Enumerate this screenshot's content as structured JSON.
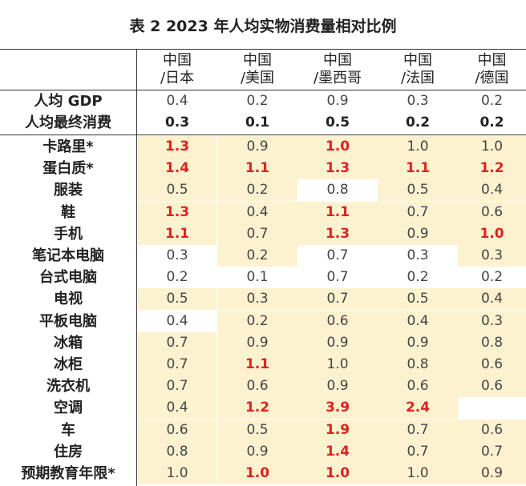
{
  "title": "表 2 2023 年人均实物消费量相对比例",
  "columns": [
    {
      "line1": "中国",
      "line2": "/日本"
    },
    {
      "line1": "中国",
      "line2": "/美国"
    },
    {
      "line1": "中国",
      "line2": "/墨西哥"
    },
    {
      "line1": "中国",
      "line2": "/法国"
    },
    {
      "line1": "中国",
      "line2": "/德国"
    }
  ],
  "summary_rows": [
    {
      "label": "人均 GDP",
      "values": [
        "0.4",
        "0.2",
        "0.9",
        "0.3",
        "0.2"
      ],
      "bold": false
    },
    {
      "label": "人均最终消费",
      "values": [
        "0.3",
        "0.1",
        "0.5",
        "0.2",
        "0.2"
      ],
      "bold": true
    }
  ],
  "rows": [
    {
      "label": "卡路里*",
      "values": [
        "1.3",
        "0.9",
        "1.0",
        "1.0",
        "1.0"
      ],
      "highlight": [
        true,
        true,
        true,
        true,
        true
      ],
      "red": [
        true,
        false,
        true,
        false,
        false
      ]
    },
    {
      "label": "蛋白质*",
      "values": [
        "1.4",
        "1.1",
        "1.3",
        "1.1",
        "1.2"
      ],
      "highlight": [
        true,
        true,
        true,
        true,
        true
      ],
      "red": [
        true,
        true,
        true,
        true,
        true
      ]
    },
    {
      "label": "服装",
      "values": [
        "0.5",
        "0.2",
        "0.8",
        "0.5",
        "0.4"
      ],
      "highlight": [
        true,
        true,
        false,
        true,
        true
      ],
      "red": [
        false,
        false,
        false,
        false,
        false
      ]
    },
    {
      "label": "鞋",
      "values": [
        "1.3",
        "0.4",
        "1.1",
        "0.7",
        "0.6"
      ],
      "highlight": [
        true,
        true,
        true,
        true,
        true
      ],
      "red": [
        true,
        false,
        true,
        false,
        false
      ]
    },
    {
      "label": "手机",
      "values": [
        "1.1",
        "0.7",
        "1.3",
        "0.9",
        "1.0"
      ],
      "highlight": [
        true,
        true,
        true,
        true,
        true
      ],
      "red": [
        true,
        false,
        true,
        false,
        true
      ]
    },
    {
      "label": "笔记本电脑",
      "values": [
        "0.3",
        "0.2",
        "0.7",
        "0.3",
        "0.3"
      ],
      "highlight": [
        false,
        true,
        false,
        false,
        true
      ],
      "red": [
        false,
        false,
        false,
        false,
        false
      ]
    },
    {
      "label": "台式电脑",
      "values": [
        "0.2",
        "0.1",
        "0.7",
        "0.2",
        "0.2"
      ],
      "highlight": [
        false,
        false,
        false,
        false,
        false
      ],
      "red": [
        false,
        false,
        false,
        false,
        false
      ]
    },
    {
      "label": "电视",
      "values": [
        "0.5",
        "0.3",
        "0.7",
        "0.5",
        "0.4"
      ],
      "highlight": [
        true,
        true,
        true,
        true,
        true
      ],
      "red": [
        false,
        false,
        false,
        false,
        false
      ]
    },
    {
      "label": "平板电脑",
      "values": [
        "0.4",
        "0.2",
        "0.6",
        "0.4",
        "0.3"
      ],
      "highlight": [
        false,
        true,
        true,
        true,
        true
      ],
      "red": [
        false,
        false,
        false,
        false,
        false
      ]
    },
    {
      "label": "冰箱",
      "values": [
        "0.7",
        "0.9",
        "0.9",
        "0.9",
        "0.8"
      ],
      "highlight": [
        true,
        true,
        true,
        true,
        true
      ],
      "red": [
        false,
        false,
        false,
        false,
        false
      ]
    },
    {
      "label": "冰柜",
      "values": [
        "0.7",
        "1.1",
        "1.0",
        "0.8",
        "0.6"
      ],
      "highlight": [
        true,
        true,
        true,
        true,
        true
      ],
      "red": [
        false,
        true,
        false,
        false,
        false
      ]
    },
    {
      "label": "洗衣机",
      "values": [
        "0.7",
        "0.6",
        "0.9",
        "0.6",
        "0.6"
      ],
      "highlight": [
        true,
        true,
        true,
        true,
        true
      ],
      "red": [
        false,
        false,
        false,
        false,
        false
      ]
    },
    {
      "label": "空调",
      "values": [
        "0.4",
        "1.2",
        "3.9",
        "2.4",
        ""
      ],
      "highlight": [
        true,
        true,
        true,
        true,
        false
      ],
      "red": [
        false,
        true,
        true,
        true,
        false
      ]
    },
    {
      "label": "车",
      "values": [
        "0.6",
        "0.5",
        "1.9",
        "0.7",
        "0.6"
      ],
      "highlight": [
        true,
        true,
        true,
        true,
        true
      ],
      "red": [
        false,
        false,
        true,
        false,
        false
      ]
    },
    {
      "label": "住房",
      "values": [
        "0.8",
        "0.9",
        "1.4",
        "0.7",
        "0.7"
      ],
      "highlight": [
        true,
        true,
        true,
        true,
        true
      ],
      "red": [
        false,
        false,
        true,
        false,
        false
      ]
    },
    {
      "label": "预期教育年限*",
      "values": [
        "1.0",
        "1.0",
        "1.0",
        "1.0",
        "0.9"
      ],
      "highlight": [
        true,
        true,
        true,
        true,
        true
      ],
      "red": [
        false,
        true,
        true,
        false,
        false
      ]
    }
  ],
  "colors": {
    "highlight": "#fdf2cf",
    "emphasis": "#e02020"
  }
}
